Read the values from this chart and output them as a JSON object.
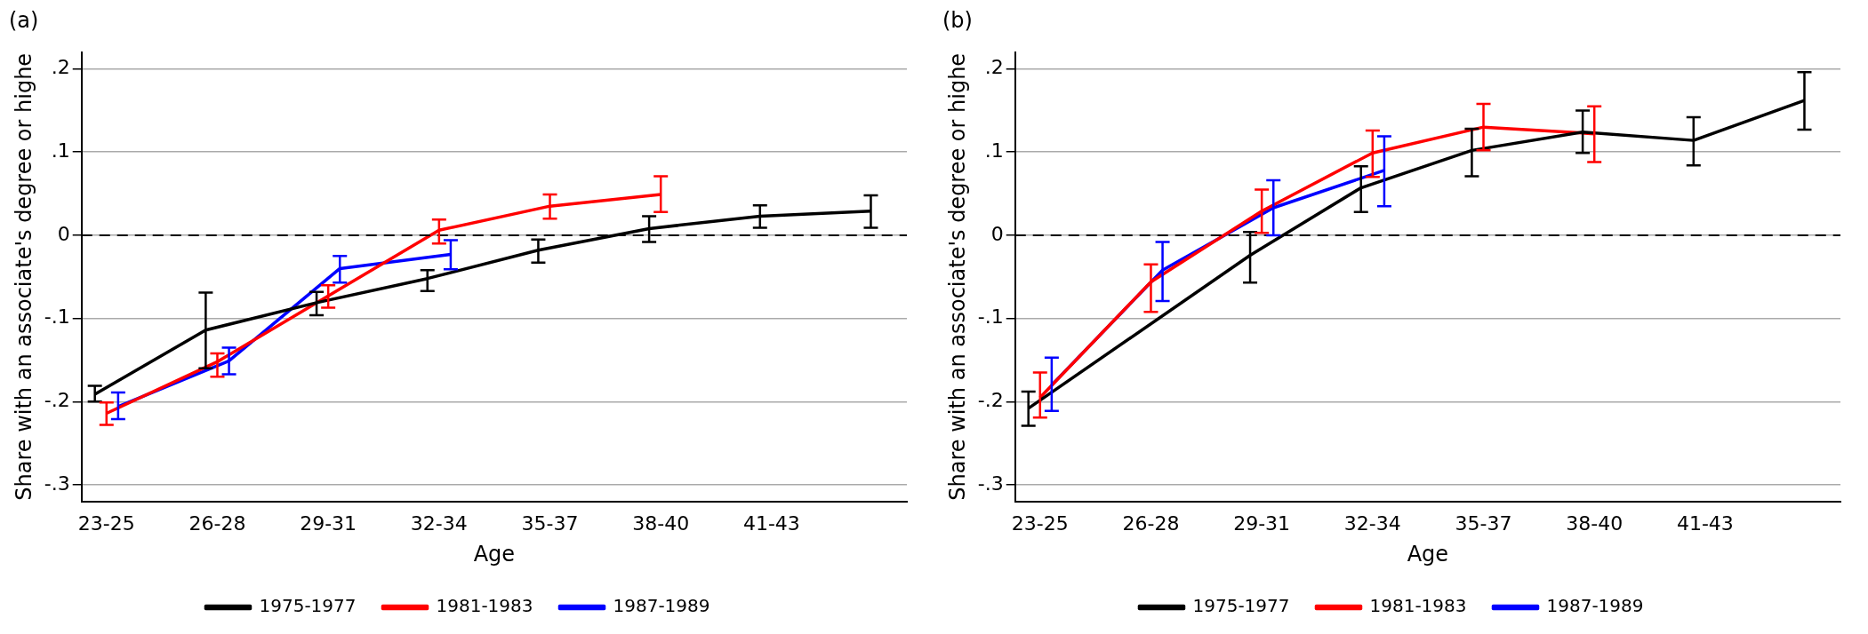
{
  "chart_data": [
    {
      "type": "line",
      "title": "(a)",
      "xlabel": "Age",
      "ylabel": "Share with an associate's degree or highe",
      "categories": [
        "23-25",
        "26-28",
        "29-31",
        "32-34",
        "35-37",
        "38-40",
        "41-43",
        null
      ],
      "series": [
        {
          "name": "1975-1977",
          "color": "#000000",
          "values": [
            -0.191,
            -0.114,
            -0.081,
            -0.052,
            -0.018,
            0.008,
            0.023,
            0.029
          ],
          "errors": [
            [
              -0.2,
              -0.181
            ],
            [
              -0.16,
              -0.069
            ],
            [
              -0.096,
              -0.068
            ],
            [
              -0.067,
              -0.042
            ],
            [
              -0.033,
              -0.005
            ],
            [
              -0.008,
              0.023
            ],
            [
              0.009,
              0.036
            ],
            [
              0.009,
              0.048
            ]
          ]
        },
        {
          "name": "1981-1983",
          "color": "#ff0000",
          "values": [
            -0.214,
            -0.152,
            -0.073,
            0.006,
            0.035,
            0.049,
            null,
            null
          ],
          "errors": [
            [
              -0.228,
              -0.201
            ],
            [
              -0.17,
              -0.142
            ],
            [
              -0.087,
              -0.06
            ],
            [
              -0.01,
              0.019
            ],
            [
              0.02,
              0.049
            ],
            [
              0.028,
              0.071
            ],
            null,
            null
          ]
        },
        {
          "name": "1987-1989",
          "color": "#0000ff",
          "values": [
            -0.206,
            -0.151,
            -0.04,
            -0.023,
            null,
            null,
            null,
            null
          ],
          "errors": [
            [
              -0.221,
              -0.189
            ],
            [
              -0.167,
              -0.135
            ],
            [
              -0.057,
              -0.025
            ],
            [
              -0.041,
              -0.006
            ],
            null,
            null,
            null,
            null
          ]
        }
      ],
      "ylim": [
        -0.32,
        0.22
      ],
      "yticks": [
        {
          "value": -0.3,
          "label": "-.3"
        },
        {
          "value": -0.2,
          "label": "-.2"
        },
        {
          "value": -0.1,
          "label": "-.1"
        },
        0,
        {
          "value": 0.1,
          "label": ".1"
        },
        {
          "value": 0.2,
          "label": ".2"
        }
      ],
      "ref_lines": [
        {
          "axis": "y",
          "value": 0,
          "color": "#000000",
          "line_style": "dashed"
        }
      ],
      "grid": "y",
      "legend": "bottom"
    },
    {
      "type": "line",
      "title": "(b)",
      "xlabel": "Age",
      "ylabel": "Share with an associate's degree or highe",
      "categories": [
        "23-25",
        "26-28",
        "29-31",
        "32-34",
        "35-37",
        "38-40",
        "41-43",
        null
      ],
      "series": [
        {
          "name": "1975-1977",
          "color": "#000000",
          "values": [
            -0.208,
            null,
            -0.024,
            0.057,
            0.102,
            0.124,
            0.114,
            0.162
          ],
          "errors": [
            [
              -0.229,
              -0.188
            ],
            null,
            [
              -0.057,
              0.004
            ],
            [
              0.028,
              0.083
            ],
            [
              0.071,
              0.128
            ],
            [
              0.099,
              0.15
            ],
            [
              0.084,
              0.142
            ],
            [
              0.127,
              0.196
            ]
          ]
        },
        {
          "name": "1981-1983",
          "color": "#ff0000",
          "values": [
            -0.195,
            -0.056,
            0.029,
            0.099,
            0.13,
            0.122,
            null,
            null
          ],
          "errors": [
            [
              -0.219,
              -0.165
            ],
            [
              -0.092,
              -0.035
            ],
            [
              0.003,
              0.055
            ],
            [
              0.07,
              0.126
            ],
            [
              0.102,
              0.158
            ],
            [
              0.088,
              0.155
            ],
            null,
            null
          ]
        },
        {
          "name": "1987-1989",
          "color": "#0000ff",
          "values": [
            -0.18,
            -0.042,
            0.033,
            0.078,
            null,
            null,
            null,
            null
          ],
          "errors": [
            [
              -0.211,
              -0.147
            ],
            [
              -0.079,
              -0.008
            ],
            [
              0.0,
              0.066
            ],
            [
              0.035,
              0.119
            ],
            null,
            null,
            null,
            null
          ]
        }
      ],
      "ylim": [
        -0.32,
        0.22
      ],
      "yticks": [
        {
          "value": -0.3,
          "label": "-.3"
        },
        {
          "value": -0.2,
          "label": "-.2"
        },
        {
          "value": -0.1,
          "label": "-.1"
        },
        0,
        {
          "value": 0.1,
          "label": ".1"
        },
        {
          "value": 0.2,
          "label": ".2"
        }
      ],
      "ref_lines": [
        {
          "axis": "y",
          "value": 0,
          "color": "#000000",
          "line_style": "dashed"
        }
      ],
      "grid": "y",
      "legend": "bottom"
    }
  ]
}
